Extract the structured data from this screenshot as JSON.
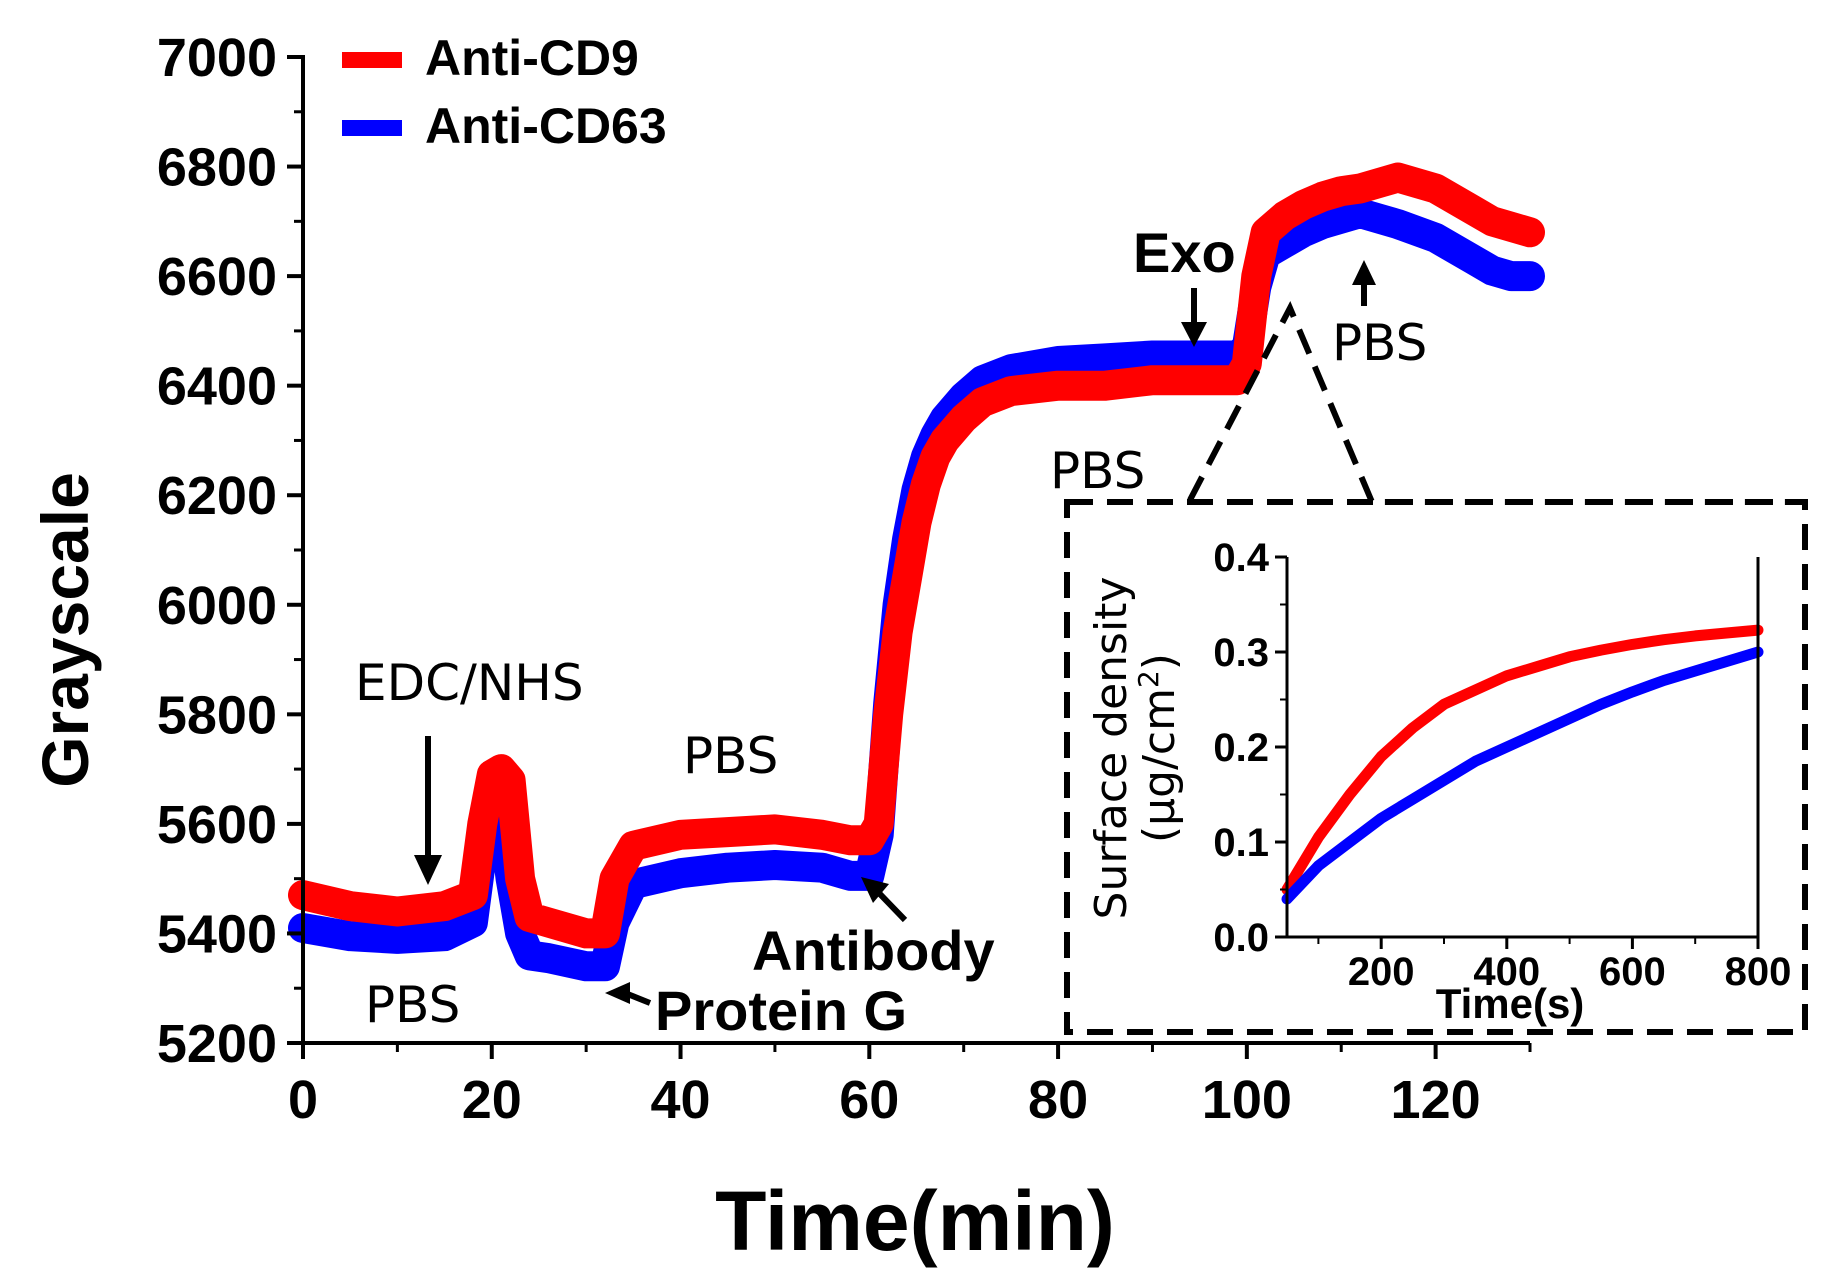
{
  "chart_data": [
    {
      "type": "line",
      "title": "",
      "xlabel": "Time(min)",
      "ylabel": "Grayscale",
      "xlim": [
        0,
        130
      ],
      "ylim": [
        5200,
        7000
      ],
      "xticks": [
        0,
        20,
        40,
        60,
        80,
        100,
        120
      ],
      "yticks": [
        5200,
        5400,
        5600,
        5800,
        6000,
        6200,
        6400,
        6600,
        6800,
        7000
      ],
      "legend": {
        "placement": "top-left",
        "entries": [
          "Anti-CD9",
          "Anti-CD63"
        ]
      },
      "series": [
        {
          "name": "Anti-CD9",
          "color": "#ff0000",
          "x": [
            0,
            5,
            10,
            15,
            18,
            19,
            20,
            21,
            22,
            23,
            24,
            26,
            30,
            32,
            33,
            35,
            40,
            45,
            50,
            55,
            58,
            60,
            61,
            62,
            63,
            64,
            65,
            66,
            67,
            68,
            70,
            72,
            75,
            80,
            85,
            90,
            95,
            99,
            100,
            101,
            102,
            104,
            106,
            108,
            110,
            112,
            114,
            116,
            120,
            124,
            126,
            128,
            130
          ],
          "values": [
            5470,
            5450,
            5440,
            5450,
            5470,
            5600,
            5690,
            5700,
            5680,
            5500,
            5430,
            5420,
            5400,
            5400,
            5500,
            5560,
            5580,
            5585,
            5590,
            5580,
            5570,
            5570,
            5600,
            5800,
            5950,
            6050,
            6150,
            6220,
            6270,
            6300,
            6340,
            6370,
            6390,
            6400,
            6400,
            6410,
            6410,
            6410,
            6440,
            6600,
            6680,
            6710,
            6730,
            6745,
            6755,
            6760,
            6770,
            6780,
            6760,
            6720,
            6700,
            6690,
            6680
          ]
        },
        {
          "name": "Anti-CD63",
          "color": "#0000ff",
          "x": [
            0,
            5,
            10,
            15,
            18,
            19,
            20,
            21,
            22,
            23,
            24,
            26,
            30,
            32,
            33,
            35,
            40,
            45,
            50,
            55,
            58,
            60,
            61,
            62,
            63,
            64,
            65,
            66,
            67,
            68,
            70,
            72,
            75,
            80,
            85,
            90,
            95,
            99,
            100,
            101,
            102,
            104,
            106,
            108,
            110,
            112,
            114,
            116,
            120,
            124,
            126,
            128,
            130
          ],
          "values": [
            5410,
            5395,
            5390,
            5395,
            5420,
            5550,
            5660,
            5640,
            5500,
            5400,
            5360,
            5355,
            5340,
            5340,
            5420,
            5490,
            5510,
            5520,
            5525,
            5520,
            5505,
            5505,
            5580,
            5820,
            6000,
            6120,
            6210,
            6270,
            6310,
            6340,
            6380,
            6410,
            6430,
            6445,
            6450,
            6455,
            6455,
            6455,
            6470,
            6580,
            6640,
            6660,
            6680,
            6695,
            6705,
            6715,
            6705,
            6695,
            6670,
            6630,
            6610,
            6600,
            6600
          ]
        }
      ],
      "annotations": [
        {
          "text": "EDC/NHS",
          "x": 13,
          "y": 5440,
          "arrow": "down"
        },
        {
          "text": "PBS",
          "x": 13,
          "y": 5270
        },
        {
          "text": "Protein G",
          "x": 33,
          "y": 5310,
          "arrow": "left"
        },
        {
          "text": "PBS",
          "x": 46,
          "y": 5640
        },
        {
          "text": "Antibody",
          "x": 60,
          "y": 5500,
          "arrow": "up-left"
        },
        {
          "text": "PBS",
          "x": 87,
          "y": 6260
        },
        {
          "text": "Exo",
          "x": 95,
          "y": 6460,
          "arrow": "down"
        },
        {
          "text": "PBS",
          "x": 113,
          "y": 6700,
          "arrow": "up"
        }
      ]
    },
    {
      "type": "scatter",
      "title": "",
      "xlabel": "Time(s)",
      "ylabel": "Surface density (μg/cm²)",
      "ylabel_line1": "Surface density",
      "ylabel_line2_prefix": "(μg/cm",
      "ylabel_line2_sup": "2",
      "ylabel_line2_suffix": ")",
      "xlim": [
        50,
        800
      ],
      "ylim": [
        0.0,
        0.4
      ],
      "xticks": [
        200,
        400,
        600,
        800
      ],
      "yticks": [
        "0.0",
        "0.1",
        "0.2",
        "0.3",
        "0.4"
      ],
      "legend": {
        "placement": "none",
        "entries": []
      },
      "series": [
        {
          "name": "Anti-CD9",
          "color": "#ff0000",
          "x": [
            50,
            100,
            150,
            200,
            250,
            300,
            350,
            400,
            450,
            500,
            550,
            600,
            650,
            700,
            750,
            800
          ],
          "values": [
            0.05,
            0.105,
            0.15,
            0.19,
            0.22,
            0.245,
            0.26,
            0.275,
            0.285,
            0.295,
            0.302,
            0.308,
            0.313,
            0.317,
            0.32,
            0.323
          ]
        },
        {
          "name": "Anti-CD63",
          "color": "#0000ff",
          "x": [
            50,
            100,
            150,
            200,
            250,
            300,
            350,
            400,
            450,
            500,
            550,
            600,
            650,
            700,
            750,
            800
          ],
          "values": [
            0.04,
            0.075,
            0.1,
            0.125,
            0.145,
            0.165,
            0.185,
            0.2,
            0.215,
            0.23,
            0.245,
            0.258,
            0.27,
            0.28,
            0.29,
            0.3
          ]
        }
      ]
    }
  ]
}
